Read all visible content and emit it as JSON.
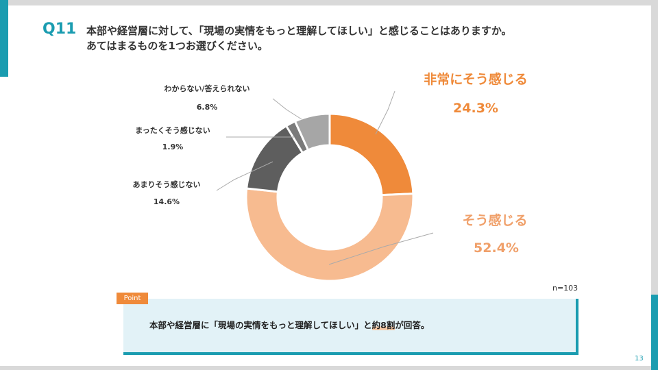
{
  "question": {
    "number": "Q11",
    "line1": "本部や経営層に対して、「現場の実情をもっと理解してほしい」と感じることはありますか。",
    "line2": "あてはまるものを1つお選びください。"
  },
  "chart_data": {
    "type": "pie",
    "variant": "donut",
    "n_label": "n=103",
    "slices": [
      {
        "label": "非常にそう感じる",
        "value": 24.3,
        "display": "24.3%",
        "color": "#ef8a3a"
      },
      {
        "label": "そう感じる",
        "value": 52.4,
        "display": "52.4%",
        "color": "#f7bb90"
      },
      {
        "label": "あまりそう感じない",
        "value": 14.6,
        "display": "14.6%",
        "color": "#5e5e5e"
      },
      {
        "label": "まったくそう感じない",
        "value": 1.9,
        "display": "1.9%",
        "color": "#7a7a7a"
      },
      {
        "label": "わからない/答えられない",
        "value": 6.8,
        "display": "6.8%",
        "color": "#a6a6a6"
      }
    ]
  },
  "point": {
    "tag": "Point",
    "text_before": "本部や経営層に「現場の実情をもっと理解してほしい」と",
    "text_highlight": "約8割",
    "text_after": "が回答。"
  },
  "page_number": "13",
  "colors": {
    "accent": "#1a9cb0",
    "orange": "#ef8a3a"
  }
}
